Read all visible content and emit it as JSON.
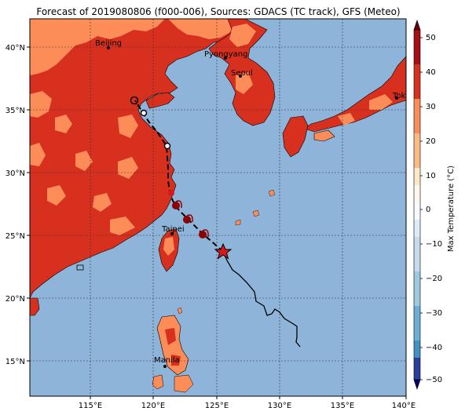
{
  "figure": {
    "title": "Forecast of 2019080806 (f000-006), Sources: GDACS (TC track), GFS (Meteo)"
  },
  "axes": {
    "lon_ticks": [
      "115°E",
      "120°E",
      "125°E",
      "130°E",
      "135°E",
      "140°E"
    ],
    "lat_ticks": [
      "40°N",
      "35°N",
      "30°N",
      "25°N",
      "20°N",
      "15°N"
    ]
  },
  "cities": [
    {
      "name": "Beijing",
      "lon": 116.4,
      "lat": 39.9
    },
    {
      "name": "Pyongyang",
      "lon": 125.75,
      "lat": 39.0
    },
    {
      "name": "Seoul",
      "lon": 126.98,
      "lat": 37.57
    },
    {
      "name": "Tokyo",
      "lon": 139.7,
      "lat": 35.7
    },
    {
      "name": "Taipei",
      "lon": 121.5,
      "lat": 25.05
    },
    {
      "name": "Manila",
      "lon": 121.0,
      "lat": 14.6
    }
  ],
  "colorbar": {
    "label": "Max Temperature (°C)",
    "ticks": [
      "50",
      "40",
      "30",
      "20",
      "10",
      "0",
      "−10",
      "−20",
      "−30",
      "−40",
      "−50"
    ]
  },
  "colors": {
    "ocean": "#8fb4d9",
    "land_hot": "#d7301f",
    "land_warm": "#fc8d59",
    "land_mild": "#fdbb84",
    "track_line": "#000000",
    "storm_marker": "#d7191c"
  }
}
